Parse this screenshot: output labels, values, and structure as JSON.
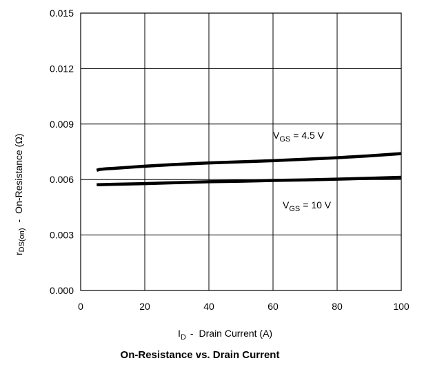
{
  "chart_data": {
    "type": "line",
    "title": "On-Resistance vs. Drain Current",
    "xlabel": {
      "symbol": "I",
      "sub": "D",
      "text": "Drain Current (A)"
    },
    "ylabel": {
      "symbol": "r",
      "sub": "DS(on)",
      "text": "On-Resistance (Ω)"
    },
    "xlim": [
      0,
      100
    ],
    "ylim": [
      0,
      0.015
    ],
    "xticks": [
      0,
      20,
      40,
      60,
      80,
      100
    ],
    "xtick_labels": [
      "0",
      "20",
      "40",
      "60",
      "80",
      "100"
    ],
    "yticks": [
      0,
      0.003,
      0.006,
      0.009,
      0.012,
      0.015
    ],
    "ytick_labels": [
      "0.000",
      "0.003",
      "0.006",
      "0.009",
      "0.012",
      "0.015"
    ],
    "grid": true,
    "series": [
      {
        "label": {
          "symbol": "V",
          "sub": "GS",
          "text": "= 4.5 V"
        },
        "color": "#000000",
        "x": [
          5,
          6,
          8,
          10,
          20,
          30,
          40,
          50,
          60,
          70,
          80,
          90,
          100
        ],
        "y": [
          0.0065,
          0.00655,
          0.00658,
          0.0066,
          0.00672,
          0.00682,
          0.0069,
          0.00696,
          0.00702,
          0.0071,
          0.00718,
          0.00728,
          0.0074
        ]
      },
      {
        "label": {
          "symbol": "V",
          "sub": "GS",
          "text": "= 10 V"
        },
        "color": "#000000",
        "x": [
          5,
          10,
          20,
          30,
          40,
          50,
          60,
          70,
          80,
          90,
          100
        ],
        "y": [
          0.00572,
          0.00574,
          0.00578,
          0.00583,
          0.00588,
          0.00591,
          0.00595,
          0.00598,
          0.00602,
          0.00607,
          0.00612
        ]
      }
    ]
  }
}
